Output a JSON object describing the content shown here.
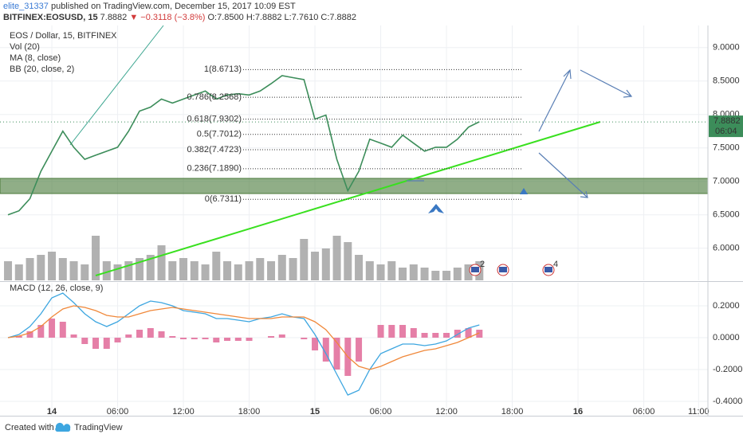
{
  "header": {
    "publisher": "elite_31337",
    "published": "published on TradingView.com, December 15, 2017 10:09 EST",
    "symbol": "BITFINEX:EOSUSD, 15",
    "last": "7.8882",
    "change": "▼ −0.3118 (−3.8%)",
    "ohlc": "O:7.8500 H:7.8882 L:7.7610 C:7.8882"
  },
  "chart_data": [
    {
      "type": "line",
      "legend": [
        "EOS / Dollar, 15, BITFINEX",
        "Vol (20)",
        "MA (8, close)",
        "BB (20, close, 2)"
      ],
      "x": [
        -4,
        -3,
        -2,
        -1,
        0,
        1,
        2,
        3,
        4,
        5,
        6,
        7,
        8,
        9,
        10,
        11,
        12,
        13,
        14,
        15,
        16,
        17,
        18,
        19,
        20,
        21,
        22,
        23,
        24,
        25,
        26,
        27,
        28,
        29,
        30,
        31,
        32,
        33,
        34,
        35,
        36,
        37,
        38,
        39
      ],
      "series": [
        {
          "color": "#3c8d5a",
          "values": [
            6.5,
            6.56,
            6.74,
            7.15,
            7.45,
            7.75,
            7.51,
            7.33,
            7.39,
            7.45,
            7.51,
            7.75,
            8.05,
            8.11,
            8.23,
            8.17,
            8.23,
            8.29,
            8.35,
            8.23,
            8.29,
            8.31,
            8.29,
            8.35,
            8.46,
            8.58,
            8.55,
            8.52,
            7.93,
            7.99,
            7.33,
            6.86,
            7.15,
            7.63,
            7.57,
            7.51,
            7.69,
            7.57,
            7.45,
            7.51,
            7.51,
            7.63,
            7.81,
            7.89
          ]
        }
      ],
      "volume": {
        "color": "#9e9e9e",
        "ylim": [
          0,
          100
        ],
        "values": [
          30,
          25,
          35,
          40,
          45,
          35,
          30,
          25,
          70,
          30,
          25,
          30,
          35,
          40,
          55,
          30,
          35,
          30,
          25,
          45,
          30,
          25,
          30,
          35,
          30,
          40,
          35,
          65,
          45,
          50,
          70,
          60,
          40,
          30,
          25,
          30,
          20,
          25,
          20,
          15,
          15,
          20,
          25,
          30
        ]
      },
      "xlim": [
        -4.73,
        59.85
      ],
      "ylim": [
        5.52,
        9.33
      ],
      "yticks": [
        {
          "value": 9,
          "label": "9.0000"
        },
        {
          "value": 8.5,
          "label": "8.5000"
        },
        {
          "value": 8,
          "label": "8.0000"
        },
        {
          "value": 7.5,
          "label": "7.5000"
        },
        {
          "value": 7,
          "label": "7.0000"
        },
        {
          "value": 6.5,
          "label": "6.5000"
        },
        {
          "value": 6,
          "label": "6.0000"
        }
      ],
      "fib_levels": [
        {
          "value": 8.6713,
          "label": "1(8.6713)"
        },
        {
          "value": 8.2568,
          "label": "0.786(8.2568)"
        },
        {
          "value": 7.9302,
          "label": "0.618(7.9302)"
        },
        {
          "value": 7.7012,
          "label": "0.5(7.7012)"
        },
        {
          "value": 7.4723,
          "label": "0.382(7.4723)"
        },
        {
          "value": 7.189,
          "label": "0.236(7.1890)"
        },
        {
          "value": 6.7311,
          "label": "0(6.7311)"
        }
      ],
      "last_price": 7.8882,
      "countdown": "06:04",
      "event_badges": [
        "2",
        "4"
      ],
      "grid": true
    },
    {
      "type": "macd",
      "title": "MACD (12, 26, close, 9)",
      "x": [
        -4,
        -3,
        -2,
        -1,
        0,
        1,
        2,
        3,
        4,
        5,
        6,
        7,
        8,
        9,
        10,
        11,
        12,
        13,
        14,
        15,
        16,
        17,
        18,
        19,
        20,
        21,
        22,
        23,
        24,
        25,
        26,
        27,
        28,
        29,
        30,
        31,
        32,
        33,
        34,
        35,
        36,
        37,
        38,
        39
      ],
      "histogram": {
        "color": "#e57fa7",
        "values": [
          0,
          0.01,
          0.04,
          0.08,
          0.12,
          0.1,
          0.02,
          -0.04,
          -0.07,
          -0.07,
          -0.03,
          0.02,
          0.05,
          0.06,
          0.04,
          0.01,
          -0.01,
          -0.01,
          -0.01,
          -0.03,
          -0.02,
          -0.02,
          -0.02,
          0,
          0.01,
          0.02,
          0,
          -0.01,
          -0.08,
          -0.15,
          -0.2,
          -0.24,
          -0.15,
          0,
          0.08,
          0.08,
          0.08,
          0.06,
          0.03,
          0.03,
          0.03,
          0.05,
          0.06,
          0.05
        ]
      },
      "series": [
        {
          "color": "#3da6e0",
          "values": [
            0,
            0.02,
            0.07,
            0.15,
            0.25,
            0.28,
            0.22,
            0.15,
            0.1,
            0.07,
            0.1,
            0.15,
            0.2,
            0.23,
            0.22,
            0.2,
            0.17,
            0.16,
            0.15,
            0.12,
            0.12,
            0.11,
            0.1,
            0.12,
            0.13,
            0.15,
            0.13,
            0.12,
            0.02,
            -0.1,
            -0.23,
            -0.36,
            -0.33,
            -0.2,
            -0.1,
            -0.07,
            -0.04,
            -0.04,
            -0.05,
            -0.04,
            -0.02,
            0.02,
            0.06,
            0.08
          ]
        },
        {
          "color": "#f0883a",
          "values": [
            0,
            0.01,
            0.03,
            0.07,
            0.13,
            0.18,
            0.2,
            0.19,
            0.17,
            0.14,
            0.13,
            0.13,
            0.15,
            0.17,
            0.18,
            0.19,
            0.18,
            0.17,
            0.16,
            0.15,
            0.14,
            0.13,
            0.12,
            0.12,
            0.12,
            0.13,
            0.13,
            0.13,
            0.1,
            0.05,
            -0.03,
            -0.12,
            -0.18,
            -0.2,
            -0.18,
            -0.15,
            -0.12,
            -0.1,
            -0.08,
            -0.07,
            -0.05,
            -0.03,
            0,
            0.03
          ]
        }
      ],
      "xlim": [
        -4.73,
        59.85
      ],
      "ylim": [
        -0.49,
        0.345
      ],
      "yticks": [
        {
          "value": 0.2,
          "label": "0.2000"
        },
        {
          "value": 0,
          "label": "0.0000"
        },
        {
          "value": -0.2,
          "label": "-0.2000"
        },
        {
          "value": -0.4,
          "label": "-0.4000"
        }
      ],
      "xticks": [
        {
          "value": 0,
          "label": "14"
        },
        {
          "value": 6,
          "label": "06:00"
        },
        {
          "value": 12,
          "label": "12:00"
        },
        {
          "value": 18,
          "label": "18:00"
        },
        {
          "value": 24,
          "label": "15"
        },
        {
          "value": 30,
          "label": "06:00"
        },
        {
          "value": 36,
          "label": "12:00"
        },
        {
          "value": 42,
          "label": "18:00"
        },
        {
          "value": 48,
          "label": "16"
        },
        {
          "value": 54,
          "label": "06:00"
        },
        {
          "value": 59,
          "label": "11:00"
        }
      ],
      "grid": true
    }
  ],
  "footer": {
    "created": "Created with",
    "brand": "TradingView"
  }
}
